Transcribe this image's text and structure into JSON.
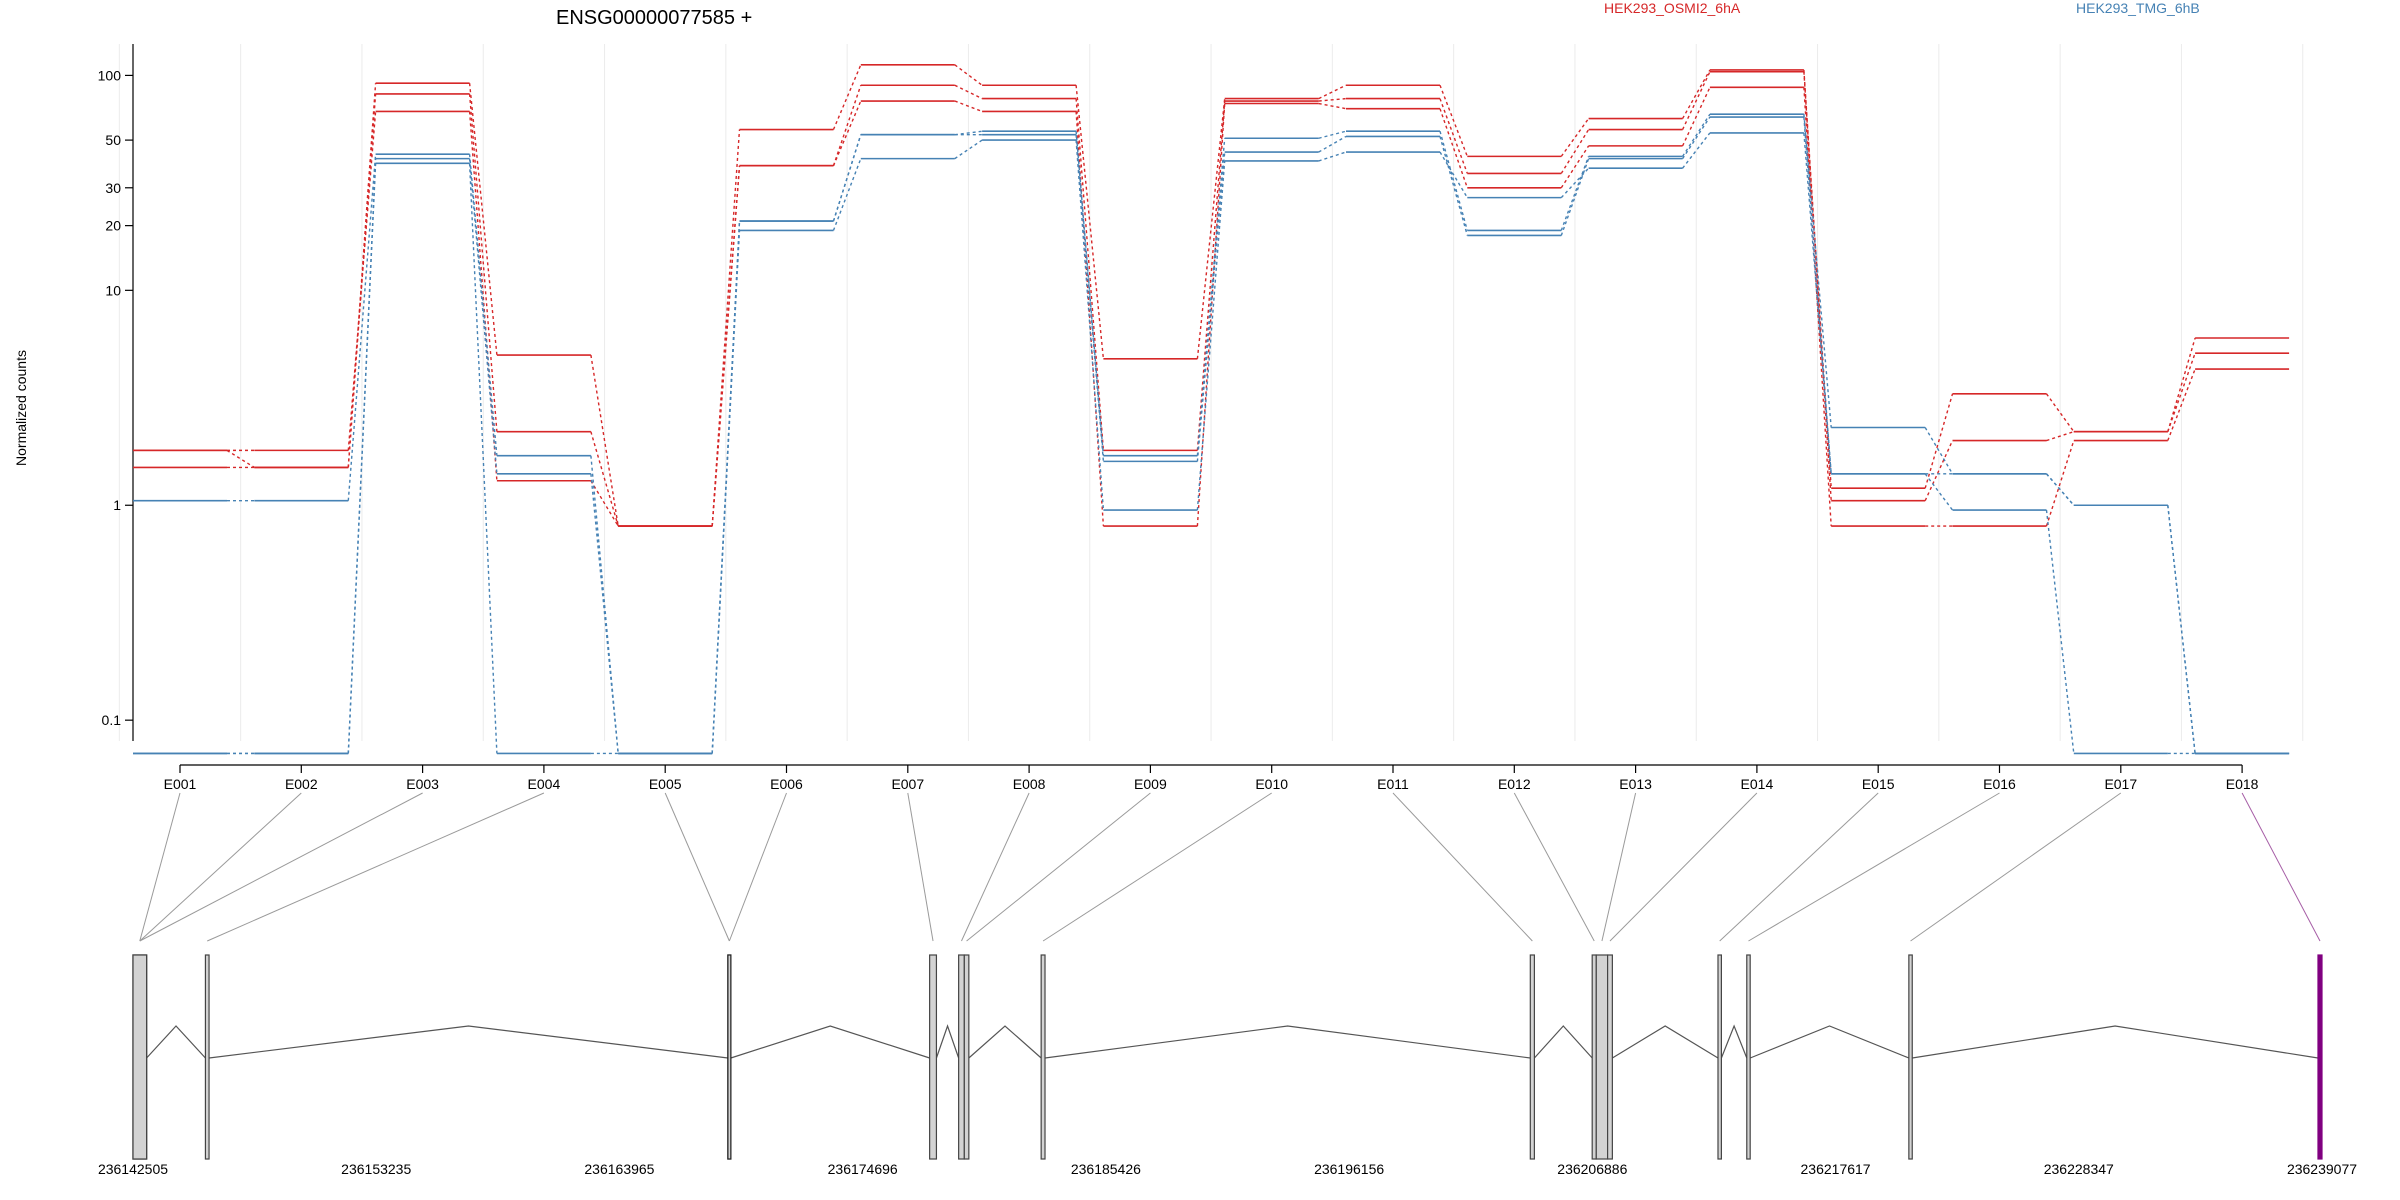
{
  "chart_data": {
    "type": "line",
    "title": "ENSG00000077585 +",
    "ylabel": "Normalized counts",
    "xlabel": "",
    "yscale": "log",
    "ylim": [
      0.08,
      140
    ],
    "yticks": [
      0.1,
      1,
      10,
      20,
      30,
      50,
      100
    ],
    "ytick_labels": [
      "0.1",
      "1",
      "10",
      "20",
      "30",
      "50",
      "100"
    ],
    "grid": true,
    "legend_placement": "top",
    "categories": [
      "E001",
      "E002",
      "E003",
      "E004",
      "E005",
      "E006",
      "E007",
      "E008",
      "E009",
      "E010",
      "E011",
      "E012",
      "E013",
      "E014",
      "E015",
      "E016",
      "E017",
      "E018"
    ],
    "series": [
      {
        "name": "HEK293_OSMI2_6hA",
        "group": "HEK293_OSMI2_6hA",
        "color": "#d62728",
        "values": [
          1.8,
          1.5,
          92,
          5.0,
          0.8,
          56,
          112,
          90,
          4.8,
          78,
          90,
          42,
          63,
          106,
          1.2,
          3.3,
          2.2,
          6.0
        ]
      },
      {
        "name": "",
        "group": "HEK293_OSMI2_6hA",
        "color": "#d62728",
        "values": [
          1.5,
          1.5,
          82,
          2.2,
          0.8,
          38,
          90,
          78,
          1.8,
          76,
          78,
          35,
          56,
          104,
          1.05,
          2.0,
          2.2,
          5.1
        ]
      },
      {
        "name": "",
        "group": "HEK293_OSMI2_6hA",
        "color": "#d62728",
        "values": [
          1.8,
          1.8,
          68,
          1.3,
          0.8,
          38,
          76,
          68,
          0.8,
          74,
          70,
          30,
          47,
          88,
          0.8,
          0.8,
          2.0,
          4.3
        ]
      },
      {
        "name": "HEK293_TMG_6hB",
        "group": "HEK293_TMG_6hB",
        "color": "#4682b4",
        "values": [
          1.05,
          1.05,
          43,
          1.7,
          0.07,
          21,
          53,
          55,
          1.7,
          51,
          55,
          19,
          42,
          66,
          2.3,
          1.4,
          1.0,
          0.07
        ]
      },
      {
        "name": "",
        "group": "HEK293_TMG_6hB",
        "color": "#4682b4",
        "values": [
          0.07,
          0.07,
          41,
          1.4,
          0.07,
          21,
          53,
          53,
          1.6,
          44,
          52,
          18,
          41,
          64,
          1.4,
          1.4,
          1.0,
          0.07
        ]
      },
      {
        "name": "",
        "group": "HEK293_TMG_6hB",
        "color": "#4682b4",
        "values": [
          0.07,
          0.07,
          39,
          0.07,
          0.07,
          19,
          41,
          50,
          0.95,
          40,
          44,
          27,
          37,
          54,
          1.4,
          0.95,
          0.07,
          0.07
        ]
      }
    ],
    "legend": [
      "HEK293_OSMI2_6hA",
      "HEK293_TMG_6hB"
    ],
    "gene_model": {
      "coordinate_ticks": [
        236142505,
        236153235,
        236163965,
        236174696,
        236185426,
        236196156,
        236206886,
        236217617,
        236228347,
        236239077
      ],
      "coordinate_tick_labels": [
        "236142505",
        "236153235",
        "236163965",
        "236174696",
        "236185426",
        "236196156",
        "236206886",
        "236217617",
        "236228347",
        "236239077"
      ],
      "range": [
        236142505,
        236239077
      ],
      "exons": [
        {
          "id": "E001",
          "start": 236142505,
          "end": 236143105,
          "fill": "#d3d3d3",
          "stroke": "#444444"
        },
        {
          "id": "E002",
          "start": 236142505,
          "end": 236143105,
          "fill": "#d3d3d3",
          "stroke": "#444444"
        },
        {
          "id": "E003",
          "start": 236142505,
          "end": 236143105,
          "fill": "#d3d3d3",
          "stroke": "#444444"
        },
        {
          "id": "E004",
          "start": 236145700,
          "end": 236145860,
          "fill": "#d3d3d3",
          "stroke": "#444444"
        },
        {
          "id": "E005",
          "start": 236168750,
          "end": 236168880,
          "fill": "#d3d3d3",
          "stroke": "#222222"
        },
        {
          "id": "E006",
          "start": 236168750,
          "end": 236168880,
          "fill": "#d3d3d3",
          "stroke": "#222222"
        },
        {
          "id": "E007",
          "start": 236177650,
          "end": 236177950,
          "fill": "#d3d3d3",
          "stroke": "#444444"
        },
        {
          "id": "E008",
          "start": 236178930,
          "end": 236179180,
          "fill": "#d3d3d3",
          "stroke": "#444444"
        },
        {
          "id": "E009",
          "start": 236179180,
          "end": 236179380,
          "fill": "#d3d3d3",
          "stroke": "#444444"
        },
        {
          "id": "E010",
          "start": 236182570,
          "end": 236182740,
          "fill": "#d3d3d3",
          "stroke": "#444444"
        },
        {
          "id": "E011",
          "start": 236204150,
          "end": 236204330,
          "fill": "#d3d3d3",
          "stroke": "#444444"
        },
        {
          "id": "E012",
          "start": 236206880,
          "end": 236207060,
          "fill": "#d3d3d3",
          "stroke": "#444444"
        },
        {
          "id": "E013",
          "start": 236207060,
          "end": 236207560,
          "fill": "#d3d3d3",
          "stroke": "#444444"
        },
        {
          "id": "E014",
          "start": 236207560,
          "end": 236207770,
          "fill": "#d3d3d3",
          "stroke": "#444444"
        },
        {
          "id": "E015",
          "start": 236212430,
          "end": 236212580,
          "fill": "#d3d3d3",
          "stroke": "#444444"
        },
        {
          "id": "E016",
          "start": 236213700,
          "end": 236213850,
          "fill": "#d3d3d3",
          "stroke": "#444444"
        },
        {
          "id": "E017",
          "start": 236220850,
          "end": 236221000,
          "fill": "#d3d3d3",
          "stroke": "#444444"
        },
        {
          "id": "E018",
          "start": 236238900,
          "end": 236239077,
          "fill": "#800080",
          "stroke": "#800080"
        }
      ],
      "introns": [
        [
          236143105,
          236145700
        ],
        [
          236145860,
          236168750
        ],
        [
          236168880,
          236177650
        ],
        [
          236177950,
          236178930
        ],
        [
          236179380,
          236182570
        ],
        [
          236182740,
          236204150
        ],
        [
          236204330,
          236206880
        ],
        [
          236207770,
          236212430
        ],
        [
          236212580,
          236213700
        ],
        [
          236213850,
          236220850
        ],
        [
          236221000,
          236238900
        ]
      ]
    }
  }
}
